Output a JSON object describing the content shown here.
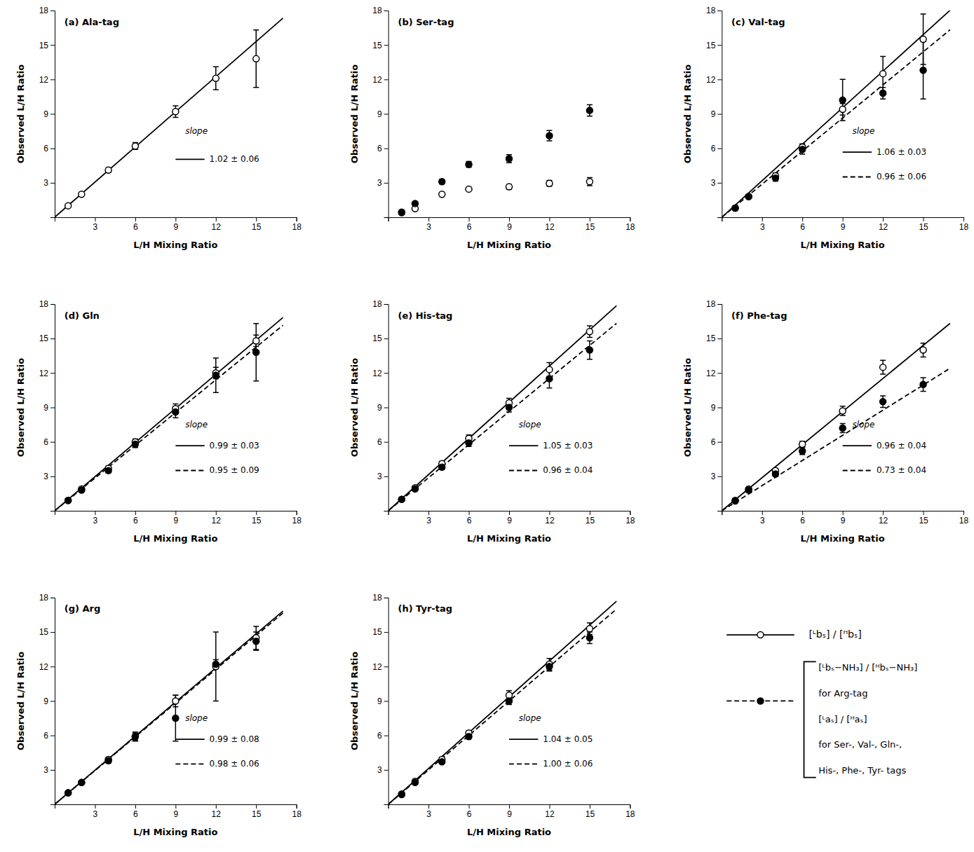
{
  "chart_data": [
    {
      "type": "scatter",
      "title": "(a) Ala-tag",
      "xlabel": "L/H Mixing Ratio",
      "ylabel": "Observed L/H Ratio",
      "x": [
        1,
        2,
        4,
        6,
        9,
        12,
        15
      ],
      "xlim": [
        0,
        18
      ],
      "ylim": [
        0,
        18
      ],
      "xticks": [
        {
          "value": 0,
          "label": null
        },
        3,
        6,
        9,
        12,
        15,
        18
      ],
      "yticks": [
        {
          "value": 0,
          "label": null
        },
        3,
        6,
        9,
        12,
        15,
        18
      ],
      "grid": false,
      "annotation": "slope",
      "series": [
        {
          "marker": "open-circle",
          "line_style": "solid",
          "color": "black",
          "values": [
            1.0,
            2.0,
            4.1,
            6.2,
            9.2,
            12.1,
            13.8
          ],
          "errors": [
            0.1,
            0.1,
            0.2,
            0.3,
            0.5,
            1.0,
            2.5
          ],
          "fit": {
            "slope": 1.02,
            "x": [
              0,
              17
            ],
            "label": "1.02 ± 0.06"
          }
        }
      ]
    },
    {
      "type": "scatter",
      "title": "(b) Ser-tag",
      "xlabel": "L/H Mixing Ratio",
      "ylabel": "Observed L/H Ratio",
      "x": [
        1,
        2,
        4,
        6,
        9,
        12,
        15
      ],
      "xlim": [
        0,
        18
      ],
      "ylim": [
        0,
        18
      ],
      "xticks": [
        {
          "value": 0,
          "label": null
        },
        3,
        6,
        9,
        12,
        15,
        18
      ],
      "yticks": [
        {
          "value": 0,
          "label": null
        },
        3,
        6,
        9,
        12,
        15,
        18
      ],
      "grid": false,
      "series": [
        {
          "marker": "open-circle",
          "line_style": "solid",
          "color": "black",
          "values": [
            0.4,
            0.75,
            2.0,
            2.45,
            2.65,
            2.95,
            3.1
          ],
          "errors": [
            0.05,
            0.08,
            0.15,
            0.15,
            0.2,
            0.25,
            0.35
          ]
        },
        {
          "marker": "filled-circle",
          "line_style": "dashed",
          "color": "black",
          "values": [
            0.45,
            1.2,
            3.1,
            4.6,
            5.1,
            7.1,
            9.3
          ],
          "errors": [
            0.05,
            0.15,
            0.2,
            0.25,
            0.35,
            0.45,
            0.5
          ]
        }
      ]
    },
    {
      "type": "scatter",
      "title": "(c) Val-tag",
      "xlabel": "L/H Mixing Ratio",
      "ylabel": "Observed L/H Ratio",
      "x": [
        1,
        2,
        4,
        6,
        9,
        12,
        15
      ],
      "xlim": [
        0,
        18
      ],
      "ylim": [
        0,
        18
      ],
      "xticks": [
        {
          "value": 0,
          "label": null
        },
        3,
        6,
        9,
        12,
        15,
        18
      ],
      "yticks": [
        {
          "value": 0,
          "label": null
        },
        3,
        6,
        9,
        12,
        15,
        18
      ],
      "grid": false,
      "annotation": "slope",
      "series": [
        {
          "name": "[ᴸbₛ] / [ᴴbₛ]",
          "marker": "open-circle",
          "line_style": "solid",
          "color": "black",
          "values": [
            0.8,
            1.8,
            3.6,
            6.1,
            9.4,
            12.5,
            15.5
          ],
          "errors": [
            0.08,
            0.15,
            0.25,
            0.3,
            0.5,
            1.5,
            2.2
          ],
          "fit": {
            "slope": 1.06,
            "x": [
              0,
              17
            ],
            "label": "1.06 ± 0.03"
          }
        },
        {
          "name": "[ᴸbₛ−NH₃] / [ᴴbₛ−NH₃]\nfor Arg-tag\n[ᴸaₛ] / [ᴴaₛ]\nfor Ser-, Val-, Gln-,\nHis-, Phe-, Tyr- tags",
          "marker": "filled-circle",
          "line_style": "dashed",
          "color": "black",
          "values": [
            0.8,
            1.8,
            3.4,
            5.9,
            10.2,
            10.8,
            12.8
          ],
          "errors": [
            0.08,
            0.15,
            0.25,
            0.4,
            1.8,
            0.5,
            2.5
          ],
          "fit": {
            "slope": 0.96,
            "x": [
              0,
              17
            ],
            "label": "0.96 ± 0.06"
          }
        }
      ]
    },
    {
      "type": "scatter",
      "title": "(d) Gln",
      "xlabel": "L/H Mixing Ratio",
      "ylabel": "Observed L/H Ratio",
      "x": [
        1,
        2,
        4,
        6,
        9,
        12,
        15
      ],
      "xlim": [
        0,
        18
      ],
      "ylim": [
        0,
        18
      ],
      "xticks": [
        {
          "value": 0,
          "label": null
        },
        3,
        6,
        9,
        12,
        15,
        18
      ],
      "yticks": [
        {
          "value": 0,
          "label": null
        },
        3,
        6,
        9,
        12,
        15,
        18
      ],
      "grid": false,
      "annotation": "slope",
      "series": [
        {
          "marker": "open-circle",
          "line_style": "solid",
          "color": "black",
          "values": [
            0.9,
            1.9,
            3.7,
            6.0,
            8.9,
            12.0,
            14.8
          ],
          "errors": [
            0.08,
            0.1,
            0.2,
            0.25,
            0.4,
            0.5,
            0.5
          ],
          "fit": {
            "slope": 0.99,
            "x": [
              0,
              17
            ],
            "label": "0.99 ± 0.03"
          }
        },
        {
          "marker": "filled-circle",
          "line_style": "dashed",
          "color": "black",
          "values": [
            0.9,
            1.8,
            3.5,
            5.8,
            8.6,
            11.8,
            13.8
          ],
          "errors": [
            0.08,
            0.1,
            0.2,
            0.3,
            0.5,
            1.5,
            2.5
          ],
          "fit": {
            "slope": 0.95,
            "x": [
              0,
              17
            ],
            "label": "0.95 ± 0.09"
          }
        }
      ]
    },
    {
      "type": "scatter",
      "title": "(e) His-tag",
      "xlabel": "L/H Mixing Ratio",
      "ylabel": "Observed L/H Ratio",
      "x": [
        1,
        2,
        4,
        6,
        9,
        12,
        15
      ],
      "xlim": [
        0,
        18
      ],
      "ylim": [
        0,
        18
      ],
      "xticks": [
        {
          "value": 0,
          "label": null
        },
        3,
        6,
        9,
        12,
        15,
        18
      ],
      "yticks": [
        {
          "value": 0,
          "label": null
        },
        3,
        6,
        9,
        12,
        15,
        18
      ],
      "grid": false,
      "annotation": "slope",
      "series": [
        {
          "marker": "open-circle",
          "line_style": "solid",
          "color": "black",
          "values": [
            1.0,
            2.0,
            4.1,
            6.3,
            9.4,
            12.3,
            15.6
          ],
          "errors": [
            0.08,
            0.1,
            0.2,
            0.3,
            0.4,
            0.6,
            0.5
          ],
          "fit": {
            "slope": 1.05,
            "x": [
              0,
              17
            ],
            "label": "1.05 ± 0.03"
          }
        },
        {
          "marker": "filled-circle",
          "line_style": "dashed",
          "color": "black",
          "values": [
            1.0,
            1.9,
            3.8,
            5.9,
            9.0,
            11.5,
            14.0
          ],
          "errors": [
            0.08,
            0.1,
            0.2,
            0.3,
            0.4,
            0.8,
            0.8
          ],
          "fit": {
            "slope": 0.96,
            "x": [
              0,
              17
            ],
            "label": "0.96 ± 0.04"
          }
        }
      ]
    },
    {
      "type": "scatter",
      "title": "(f) Phe-tag",
      "xlabel": "L/H Mixing Ratio",
      "ylabel": "Observed L/H Ratio",
      "x": [
        1,
        2,
        4,
        6,
        9,
        12,
        15
      ],
      "xlim": [
        0,
        18
      ],
      "ylim": [
        0,
        18
      ],
      "xticks": [
        {
          "value": 0,
          "label": null
        },
        3,
        6,
        9,
        12,
        15,
        18
      ],
      "yticks": [
        {
          "value": 0,
          "label": null
        },
        3,
        6,
        9,
        12,
        15,
        18
      ],
      "grid": false,
      "annotation": "slope",
      "series": [
        {
          "marker": "open-circle",
          "line_style": "solid",
          "color": "black",
          "values": [
            0.9,
            1.9,
            3.5,
            5.8,
            8.7,
            12.5,
            14.0
          ],
          "errors": [
            0.08,
            0.1,
            0.2,
            0.25,
            0.4,
            0.6,
            0.6
          ],
          "fit": {
            "slope": 0.96,
            "x": [
              0,
              17
            ],
            "label": "0.96 ± 0.04"
          }
        },
        {
          "marker": "filled-circle",
          "line_style": "dashed",
          "color": "black",
          "values": [
            0.85,
            1.8,
            3.2,
            5.2,
            7.2,
            9.5,
            11.0
          ],
          "errors": [
            0.08,
            0.1,
            0.2,
            0.3,
            0.4,
            0.5,
            0.6
          ],
          "fit": {
            "slope": 0.73,
            "x": [
              0,
              17
            ],
            "label": "0.73 ± 0.04"
          }
        }
      ]
    },
    {
      "type": "scatter",
      "title": "(g) Arg",
      "xlabel": "L/H Mixing Ratio",
      "ylabel": "Observed L/H Ratio",
      "x": [
        1,
        2,
        4,
        6,
        9,
        12,
        15
      ],
      "xlim": [
        0,
        18
      ],
      "ylim": [
        0,
        18
      ],
      "xticks": [
        {
          "value": 0,
          "label": null
        },
        3,
        6,
        9,
        12,
        15,
        18
      ],
      "yticks": [
        {
          "value": 0,
          "label": null
        },
        3,
        6,
        9,
        12,
        15,
        18
      ],
      "grid": false,
      "annotation": "slope",
      "series": [
        {
          "marker": "open-circle",
          "line_style": "solid",
          "color": "black",
          "values": [
            1.0,
            1.9,
            3.9,
            5.9,
            9.0,
            12.0,
            14.5
          ],
          "errors": [
            0.08,
            0.1,
            0.2,
            0.4,
            0.5,
            3.0,
            1.0
          ],
          "fit": {
            "slope": 0.99,
            "x": [
              0,
              17
            ],
            "label": "0.99 ± 0.08"
          }
        },
        {
          "marker": "filled-circle",
          "line_style": "dashed",
          "color": "black",
          "values": [
            1.0,
            1.9,
            3.8,
            5.9,
            7.5,
            12.2,
            14.2
          ],
          "errors": [
            0.08,
            0.1,
            0.2,
            0.3,
            2.0,
            0.4,
            0.8
          ],
          "fit": {
            "slope": 0.98,
            "x": [
              0,
              17
            ],
            "label": "0.98 ± 0.06"
          }
        }
      ]
    },
    {
      "type": "scatter",
      "title": "(h) Tyr-tag",
      "xlabel": "L/H Mixing Ratio",
      "ylabel": "Observed L/H Ratio",
      "x": [
        1,
        2,
        4,
        6,
        9,
        12,
        15
      ],
      "xlim": [
        0,
        18
      ],
      "ylim": [
        0,
        18
      ],
      "xticks": [
        {
          "value": 0,
          "label": null
        },
        3,
        6,
        9,
        12,
        15,
        18
      ],
      "yticks": [
        {
          "value": 0,
          "label": null
        },
        3,
        6,
        9,
        12,
        15,
        18
      ],
      "grid": false,
      "annotation": "slope",
      "series": [
        {
          "marker": "open-circle",
          "line_style": "solid",
          "color": "black",
          "values": [
            0.9,
            2.0,
            3.9,
            6.2,
            9.5,
            12.2,
            15.3
          ],
          "errors": [
            0.08,
            0.1,
            0.2,
            0.2,
            0.4,
            0.5,
            0.5
          ],
          "fit": {
            "slope": 1.04,
            "x": [
              0,
              17
            ],
            "label": "1.04 ± 0.05"
          }
        },
        {
          "marker": "filled-circle",
          "line_style": "dashed",
          "color": "black",
          "values": [
            0.85,
            1.9,
            3.7,
            5.9,
            9.0,
            12.0,
            14.5
          ],
          "errors": [
            0.08,
            0.1,
            0.15,
            0.2,
            0.3,
            0.4,
            0.5
          ],
          "fit": {
            "slope": 1.0,
            "x": [
              0,
              17
            ],
            "label": "1.00 ± 0.06"
          }
        }
      ]
    }
  ]
}
